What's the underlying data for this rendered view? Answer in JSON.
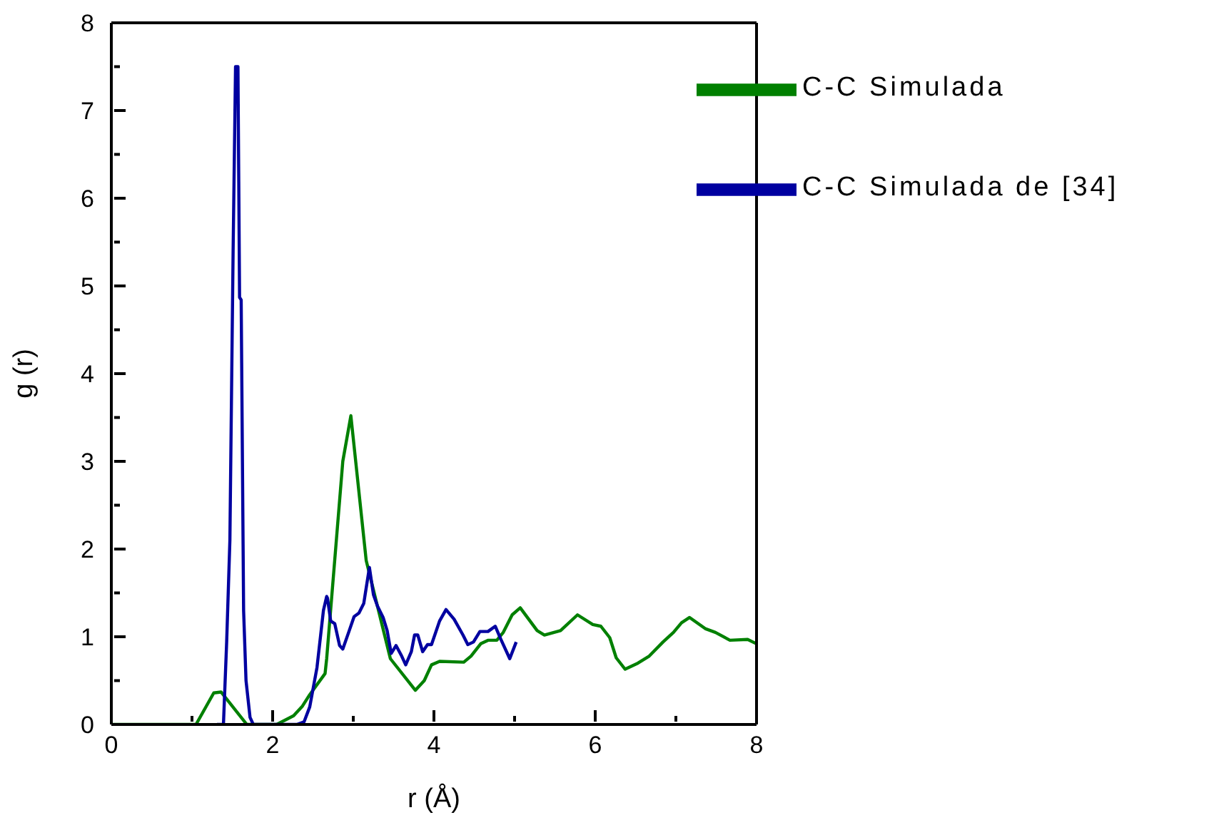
{
  "chart_data": {
    "type": "line",
    "xlabel": "r (Å)",
    "ylabel": "g (r)",
    "xlim": [
      0,
      8
    ],
    "ylim": [
      0,
      8
    ],
    "xticks": [
      0,
      {
        "value": 1,
        "label": null
      },
      2,
      {
        "value": 3,
        "label": null
      },
      4,
      {
        "value": 5,
        "label": null
      },
      6,
      {
        "value": 7,
        "label": null
      },
      8
    ],
    "yticks": [
      0,
      {
        "value": 0.5,
        "label": null
      },
      1,
      {
        "value": 1.5,
        "label": null
      },
      2,
      {
        "value": 2.5,
        "label": null
      },
      3,
      {
        "value": 3.5,
        "label": null
      },
      4,
      {
        "value": 4.5,
        "label": null
      },
      5,
      {
        "value": 5.5,
        "label": null
      },
      6,
      {
        "value": 6.5,
        "label": null
      },
      7,
      {
        "value": 7.5,
        "label": null
      },
      8
    ],
    "grid": false,
    "legend": "top right",
    "marker": "none",
    "line_style": "solid",
    "series": [
      {
        "name": "C-C Simulada",
        "color": "#008000",
        "x": [
          0,
          1.05,
          1.27,
          1.36,
          1.68,
          2.05,
          2.26,
          2.37,
          2.46,
          2.65,
          2.67,
          2.87,
          2.97,
          3.16,
          3.46,
          3.77,
          3.88,
          3.97,
          4.07,
          4.37,
          4.46,
          4.58,
          4.67,
          4.78,
          4.86,
          4.97,
          5.07,
          5.28,
          5.37,
          5.57,
          5.78,
          5.97,
          6.07,
          6.18,
          6.26,
          6.37,
          6.53,
          6.67,
          6.84,
          6.97,
          7.07,
          7.17,
          7.37,
          7.49,
          7.67,
          7.89,
          8.0
        ],
        "values": [
          0,
          0,
          0.36,
          0.37,
          0,
          0,
          0.1,
          0.21,
          0.34,
          0.58,
          0.75,
          3.0,
          3.52,
          1.87,
          0.75,
          0.39,
          0.5,
          0.68,
          0.72,
          0.71,
          0.78,
          0.92,
          0.96,
          0.96,
          1.05,
          1.25,
          1.33,
          1.07,
          1.02,
          1.07,
          1.25,
          1.14,
          1.12,
          0.99,
          0.76,
          0.63,
          0.7,
          0.78,
          0.94,
          1.05,
          1.16,
          1.22,
          1.09,
          1.05,
          0.96,
          0.97,
          0.92
        ]
      },
      {
        "name": "C-C Simulada de [34]",
        "color": "#0000a0",
        "x": [
          1.31,
          1.39,
          1.43,
          1.47,
          1.51,
          1.54,
          1.57,
          1.59,
          1.61,
          1.64,
          1.67,
          1.72,
          1.76,
          2.3,
          2.39,
          2.46,
          2.55,
          2.63,
          2.67,
          2.68,
          2.72,
          2.77,
          2.83,
          2.87,
          2.95,
          3.01,
          3.07,
          3.13,
          3.2,
          3.25,
          3.3,
          3.37,
          3.42,
          3.47,
          3.53,
          3.6,
          3.65,
          3.72,
          3.76,
          3.8,
          3.86,
          3.92,
          3.97,
          4.07,
          4.15,
          4.25,
          4.36,
          4.42,
          4.49,
          4.57,
          4.67,
          4.76,
          4.83,
          4.94,
          5.02
        ],
        "values": [
          0,
          0,
          0.94,
          2.1,
          5.4,
          7.5,
          7.5,
          4.87,
          4.84,
          1.3,
          0.5,
          0.08,
          0,
          0,
          0.03,
          0.2,
          0.65,
          1.3,
          1.46,
          1.44,
          1.18,
          1.15,
          0.9,
          0.86,
          1.07,
          1.23,
          1.27,
          1.38,
          1.79,
          1.48,
          1.35,
          1.22,
          1.07,
          0.81,
          0.9,
          0.78,
          0.68,
          0.83,
          1.02,
          1.02,
          0.83,
          0.91,
          0.91,
          1.18,
          1.31,
          1.2,
          1.02,
          0.91,
          0.94,
          1.06,
          1.06,
          1.12,
          0.97,
          0.75,
          0.94
        ]
      }
    ]
  }
}
